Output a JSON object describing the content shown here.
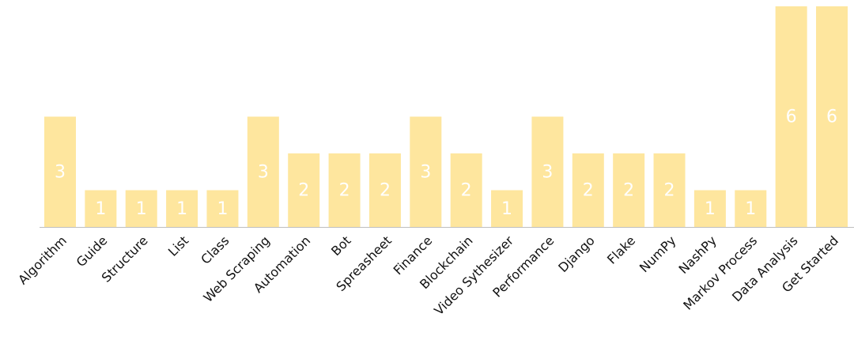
{
  "chart_data": {
    "type": "bar",
    "categories": [
      "Algorithm",
      "Guide",
      "Structure",
      "List",
      "Class",
      "Web Scraping",
      "Automation",
      "Bot",
      "Spreasheet",
      "Finance",
      "Blockchain",
      "Video Sythesizer",
      "Performance",
      "Django",
      "Flake",
      "NumPy",
      "NashPy",
      "Markov Process",
      "Data Analysis",
      "Get Started"
    ],
    "values": [
      3,
      1,
      1,
      1,
      1,
      3,
      2,
      2,
      2,
      3,
      2,
      1,
      3,
      2,
      2,
      2,
      1,
      1,
      6,
      6
    ],
    "color": "#fee69e"
  }
}
